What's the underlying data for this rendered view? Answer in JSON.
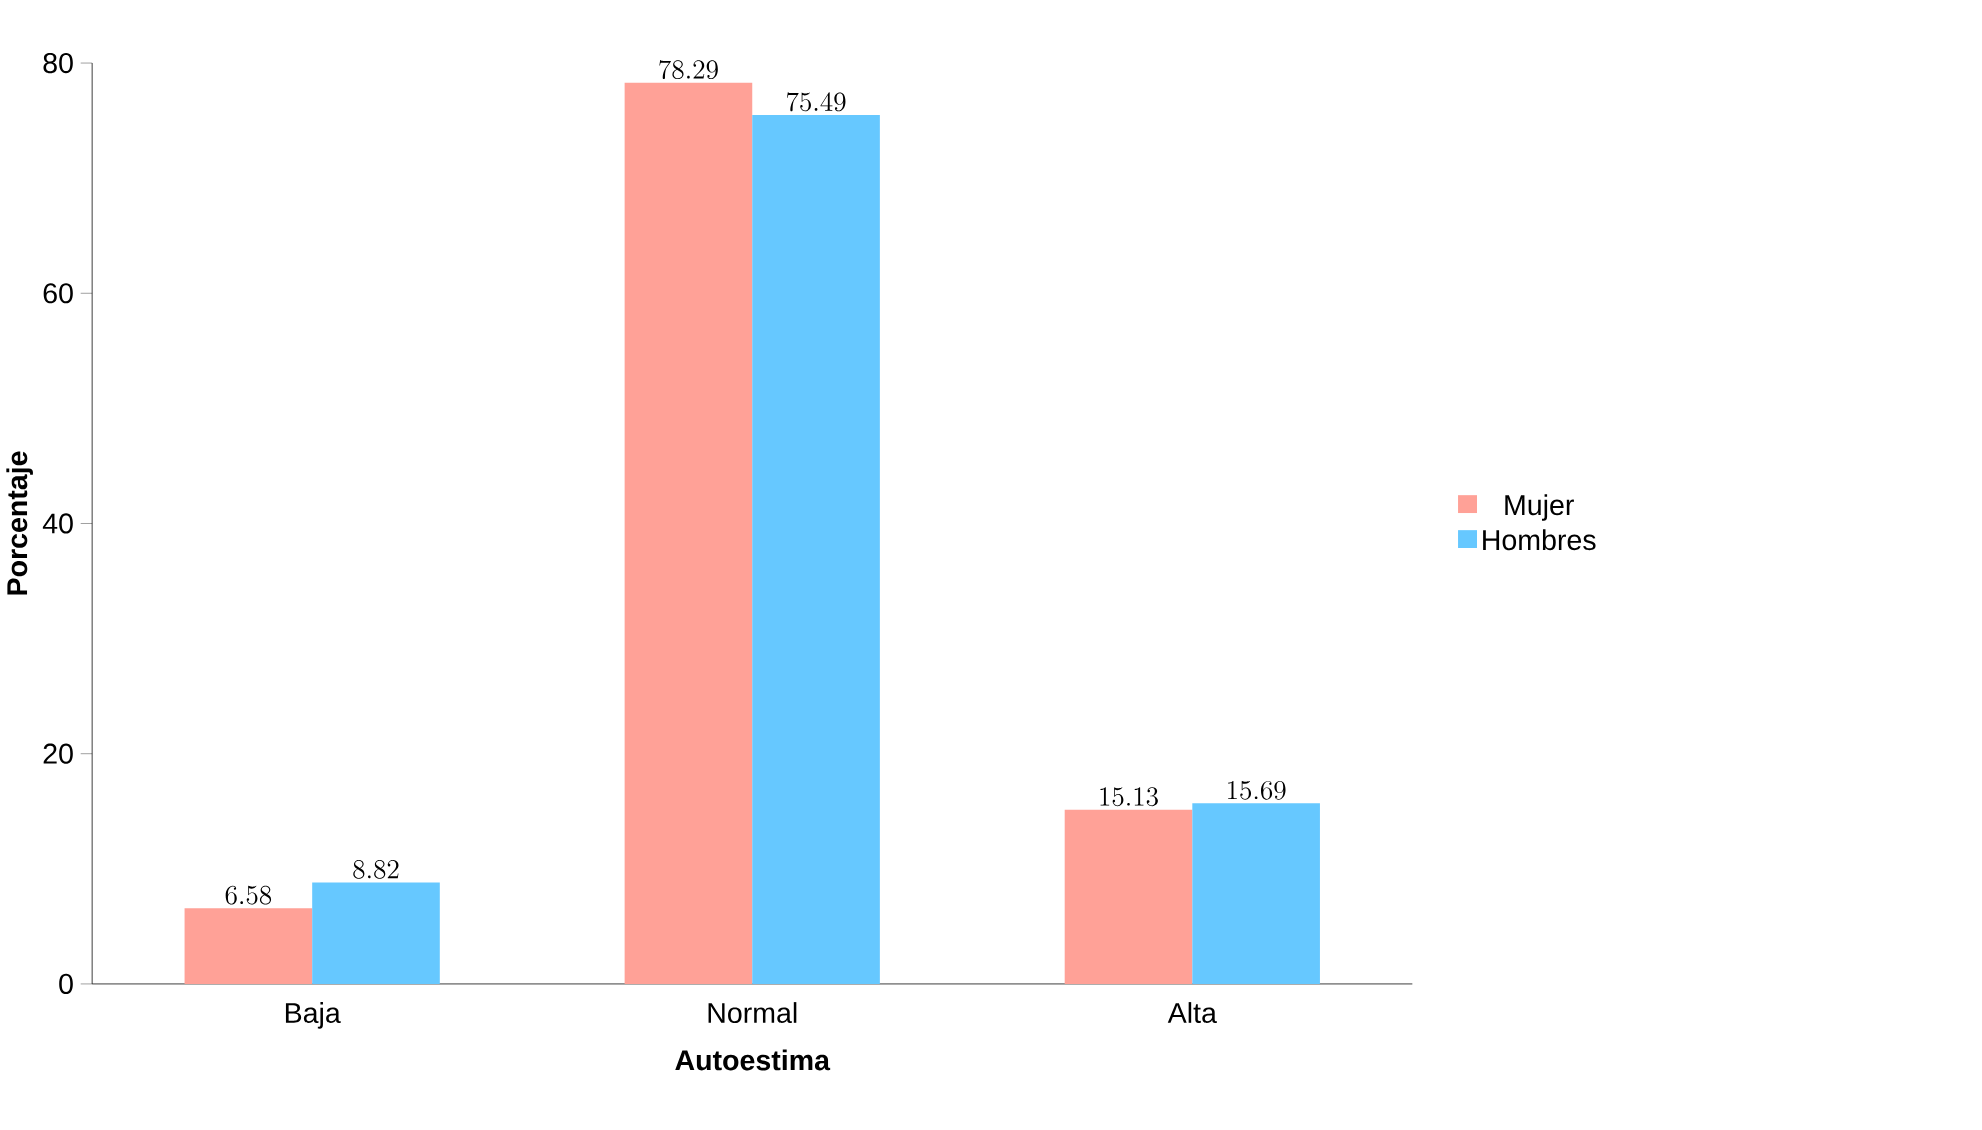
{
  "chart_data": {
    "type": "bar",
    "xlabel": "Autoestima",
    "ylabel": "Porcentaje",
    "categories": [
      "Baja",
      "Normal",
      "Alta"
    ],
    "series": [
      {
        "name": "Mujer",
        "color": "#ffa197",
        "values": [
          6.58,
          78.29,
          15.13
        ]
      },
      {
        "name": "Hombres",
        "color": "#66c8ff",
        "values": [
          8.82,
          75.49,
          15.69
        ]
      }
    ],
    "ylim": [
      0,
      80
    ],
    "yticks": [
      0,
      20,
      40,
      60,
      80
    ],
    "data_labels": true,
    "legend": "right",
    "grid": false
  }
}
